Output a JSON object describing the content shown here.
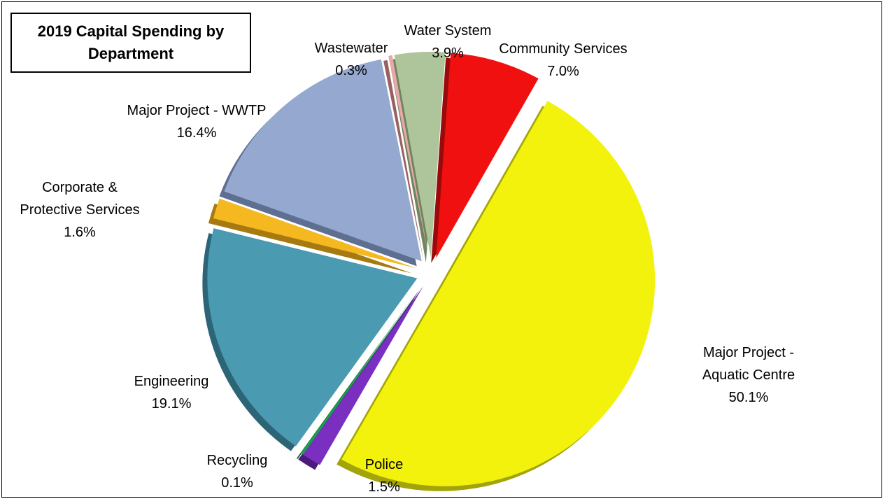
{
  "chart_data": {
    "type": "pie",
    "title": "2019 Capital Spending by Department",
    "slices": [
      {
        "name": "Community Services",
        "value": 7.0,
        "label_pct": "7.0%",
        "color": "#f01010",
        "side_color": "#9a0a0a"
      },
      {
        "name": "Major Project - Aquatic Centre",
        "value": 50.1,
        "label_pct": "50.1%",
        "color": "#f2f20c",
        "side_color": "#a3a30a"
      },
      {
        "name": "Police",
        "value": 1.5,
        "label_pct": "1.5%",
        "color": "#7a2fc0",
        "side_color": "#4b1a7a"
      },
      {
        "name": "Recycling",
        "value": 0.1,
        "label_pct": "0.1%",
        "color": "#1aa050",
        "side_color": "#0d6a32"
      },
      {
        "name": "Engineering",
        "value": 19.1,
        "label_pct": "19.1%",
        "color": "#4a9ab2",
        "side_color": "#2c6576"
      },
      {
        "name": "Corporate & Protective Services",
        "value": 1.6,
        "label_pct": "1.6%",
        "color": "#f5b820",
        "side_color": "#a67a10"
      },
      {
        "name": "Major Project - WWTP",
        "value": 16.4,
        "label_pct": "16.4%",
        "color": "#95a8cf",
        "side_color": "#5f6f92"
      },
      {
        "name": "Wastewater",
        "value": 0.3,
        "label_pct": "0.3%",
        "color": "#e8a8a8",
        "side_color": "#9a6060"
      },
      {
        "name": "Water System",
        "value": 3.9,
        "label_pct": "3.9%",
        "color": "#aec49a",
        "side_color": "#6f8560"
      }
    ],
    "labels": [
      {
        "lines": [
          "Community Services",
          "7.0%"
        ]
      },
      {
        "lines": [
          "Major Project -",
          "Aquatic Centre",
          "50.1%"
        ]
      },
      {
        "lines": [
          "Police",
          "1.5%"
        ]
      },
      {
        "lines": [
          "Recycling",
          "0.1%"
        ]
      },
      {
        "lines": [
          "Engineering",
          "19.1%"
        ]
      },
      {
        "lines": [
          "Corporate &",
          "Protective Services",
          "1.6%"
        ]
      },
      {
        "lines": [
          "Major Project - WWTP",
          "16.4%"
        ]
      },
      {
        "lines": [
          "Wastewater",
          "0.3%"
        ]
      },
      {
        "lines": [
          "Water System",
          "3.9%"
        ]
      }
    ]
  }
}
